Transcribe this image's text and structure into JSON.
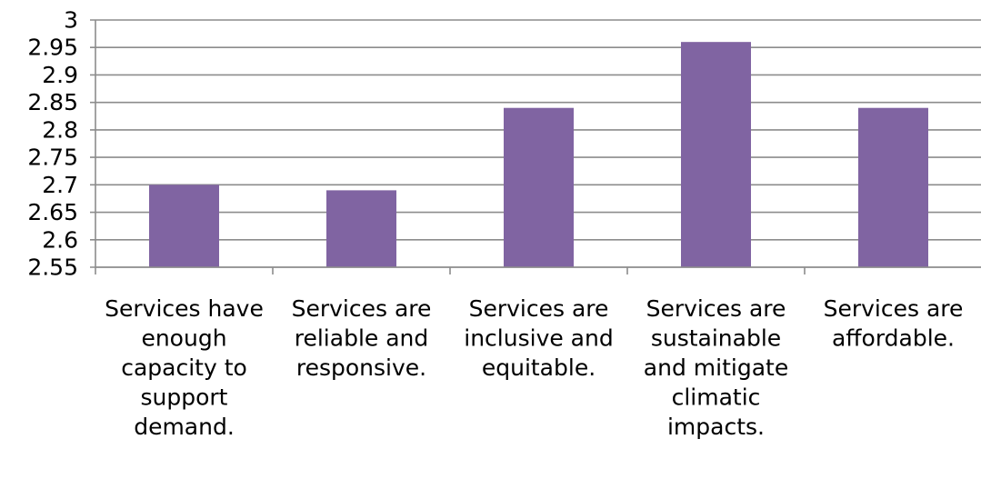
{
  "chart_data": {
    "type": "bar",
    "title": "",
    "xlabel": "",
    "ylabel": "",
    "categories": [
      "Services have enough capacity to support demand.",
      "Services are reliable and responsive.",
      "Services are inclusive and equitable.",
      "Services are sustainable and mitigate climatic impacts.",
      "Services are affordable."
    ],
    "category_label_lines": [
      [
        "Services have",
        "enough",
        "capacity to",
        "support",
        "demand."
      ],
      [
        "Services are",
        "reliable and",
        "responsive."
      ],
      [
        "Services are",
        "inclusive and",
        "equitable."
      ],
      [
        "Services are",
        "sustainable",
        "and mitigate",
        "climatic",
        "impacts."
      ],
      [
        "Services are",
        "affordable."
      ]
    ],
    "values": [
      2.7,
      2.69,
      2.84,
      2.96,
      2.84
    ],
    "ylim": [
      2.55,
      3
    ],
    "yticks": [
      "2.55",
      "2.6",
      "2.65",
      "2.7",
      "2.75",
      "2.8",
      "2.85",
      "2.9",
      "2.95",
      "3"
    ],
    "grid": true,
    "bar_color": "#8064a2",
    "grid_color": "#8c8c8c"
  }
}
